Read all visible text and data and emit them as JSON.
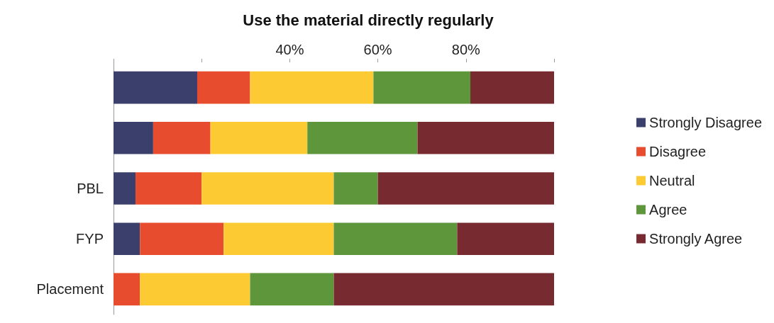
{
  "chart_data": {
    "type": "bar",
    "orientation": "horizontal",
    "stacked": true,
    "title": "Use the material directly regularly",
    "categories": [
      null,
      null,
      "PBL",
      "FYP",
      "Placement"
    ],
    "series": [
      {
        "name": "Strongly Disagree",
        "color": "#3a3f6b",
        "values": [
          19,
          9,
          5,
          6,
          0
        ]
      },
      {
        "name": "Disagree",
        "color": "#e84c2e",
        "values": [
          12,
          13,
          15,
          19,
          6
        ]
      },
      {
        "name": "Neutral",
        "color": "#fccb34",
        "values": [
          28,
          22,
          30,
          25,
          25
        ]
      },
      {
        "name": "Agree",
        "color": "#5e963b",
        "values": [
          22,
          25,
          10,
          28,
          19
        ]
      },
      {
        "name": "Strongly Agree",
        "color": "#772a2f",
        "values": [
          19,
          31,
          40,
          22,
          50
        ]
      }
    ],
    "xlim": [
      0,
      100
    ],
    "xticks": [
      {
        "value": 0,
        "label": null
      },
      {
        "value": 20,
        "label": null
      },
      {
        "value": 40,
        "label": "40%"
      },
      {
        "value": 60,
        "label": "60%"
      },
      {
        "value": 80,
        "label": "80%"
      },
      {
        "value": 100,
        "label": null
      }
    ],
    "grid": false,
    "legend": "right"
  }
}
